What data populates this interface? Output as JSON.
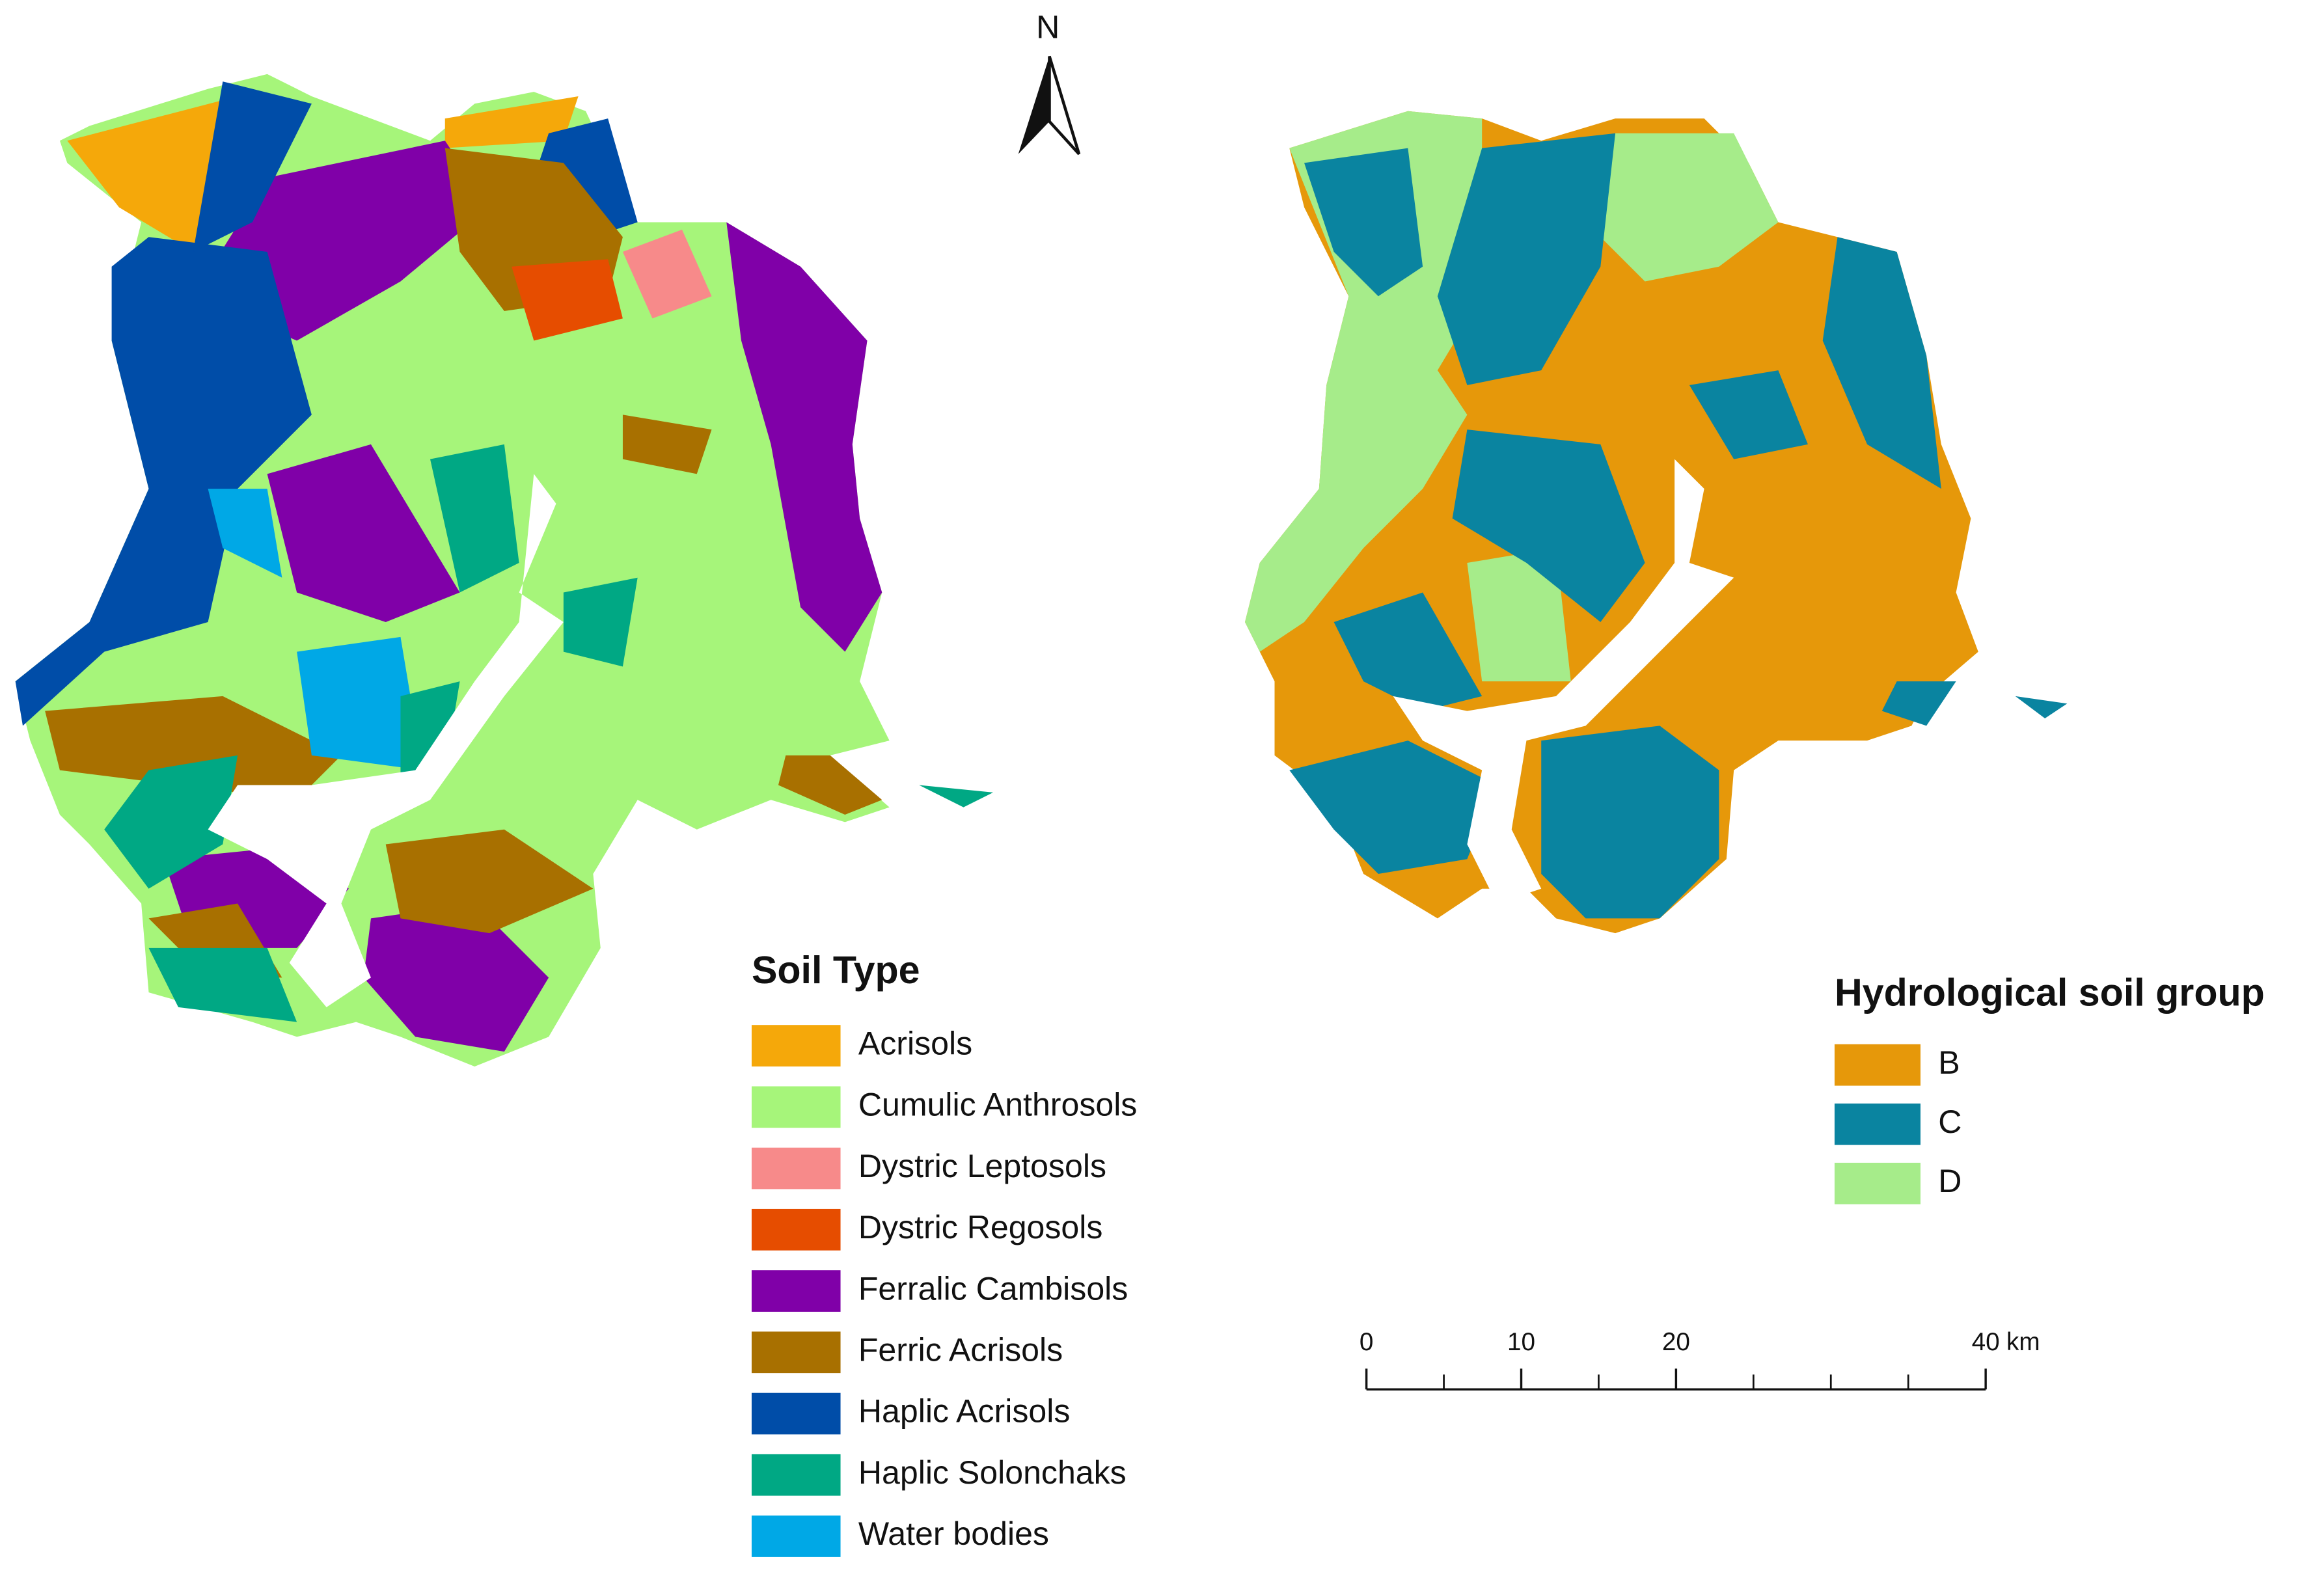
{
  "north_arrow": {
    "label": "N"
  },
  "soil_legend": {
    "title": "Soil Type",
    "items": [
      {
        "label": "Acrisols",
        "color": "#f5a80a"
      },
      {
        "label": "Cumulic Anthrosols",
        "color": "#a6f57a"
      },
      {
        "label": "Dystric Leptosols",
        "color": "#f78a8a"
      },
      {
        "label": "Dystric Regosols",
        "color": "#e64d00"
      },
      {
        "label": "Ferralic Cambisols",
        "color": "#8000a8"
      },
      {
        "label": "Ferric Acrisols",
        "color": "#a87000"
      },
      {
        "label": "Haplic Acrisols",
        "color": "#004da8"
      },
      {
        "label": "Haplic Solonchaks",
        "color": "#00a884"
      },
      {
        "label": "Water bodies",
        "color": "#00a8e6"
      }
    ]
  },
  "hsg_legend": {
    "title": "Hydrological soil group",
    "items": [
      {
        "label": "B",
        "color": "#e6980a"
      },
      {
        "label": "C",
        "color": "#0a84a0"
      },
      {
        "label": "D",
        "color": "#a6ec8a"
      }
    ]
  },
  "scale_bar": {
    "ticks": [
      0,
      10,
      20,
      40
    ],
    "unit": "km"
  }
}
